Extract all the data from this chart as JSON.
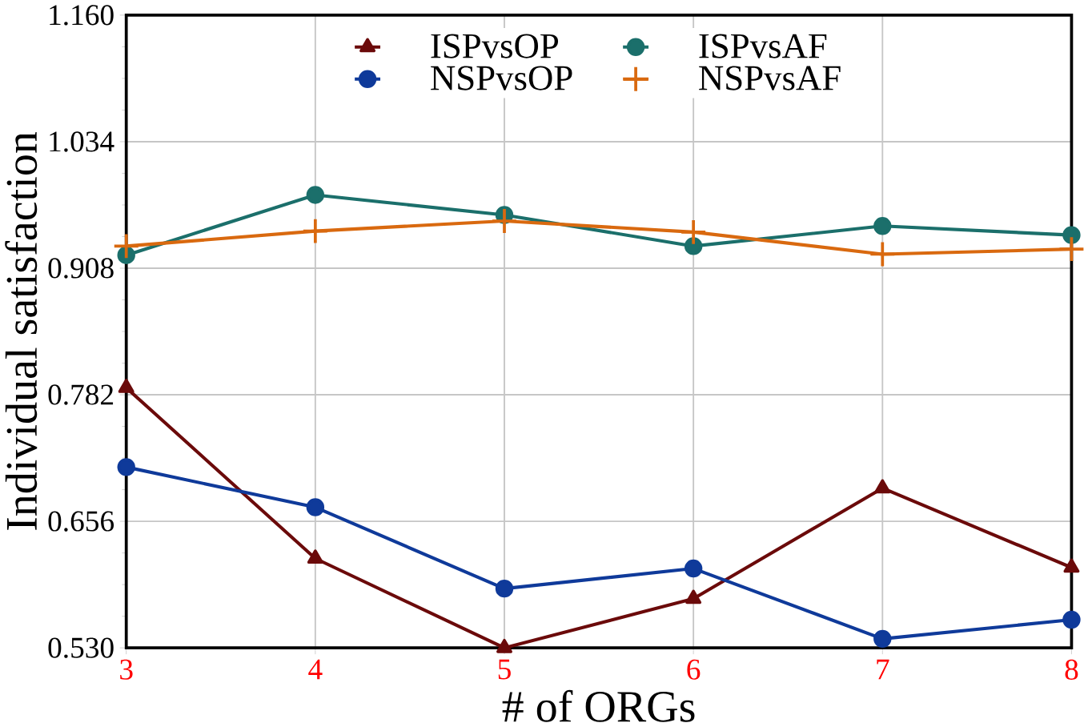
{
  "chart_data": {
    "type": "line",
    "xlabel": "# of ORGs",
    "ylabel": "Individual satisfaction",
    "x": [
      3,
      4,
      5,
      6,
      7,
      8
    ],
    "series": [
      {
        "name": "ISPvsOP",
        "color": "#6b0a0a",
        "marker": "triangle",
        "values": [
          0.789,
          0.619,
          0.53,
          0.579,
          0.689,
          0.61
        ]
      },
      {
        "name": "ISPvsAF",
        "color": "#1b6f6b",
        "marker": "circle",
        "values": [
          0.921,
          0.981,
          0.961,
          0.93,
          0.95,
          0.941
        ]
      },
      {
        "name": "NSPvsOP",
        "color": "#0f3a9a",
        "marker": "circle",
        "values": [
          0.71,
          0.67,
          0.589,
          0.609,
          0.539,
          0.558
        ]
      },
      {
        "name": "NSPvsAF",
        "color": "#d9690f",
        "marker": "cross",
        "values": [
          0.93,
          0.945,
          0.955,
          0.944,
          0.922,
          0.927
        ]
      }
    ],
    "xlim": [
      3,
      8
    ],
    "xticks": [
      3,
      4,
      5,
      6,
      7,
      8
    ],
    "ylim": [
      0.53,
      1.16
    ],
    "yticks": [
      {
        "value": 0.53,
        "label": "0.530"
      },
      {
        "value": 0.656,
        "label": "0.656"
      },
      {
        "value": 0.782,
        "label": "0.782"
      },
      {
        "value": 0.908,
        "label": "0.908"
      },
      {
        "value": 1.034,
        "label": "1.034"
      },
      {
        "value": 1.16,
        "label": "1.160"
      }
    ],
    "grid": true,
    "legend": "top",
    "line_style": "solid"
  }
}
